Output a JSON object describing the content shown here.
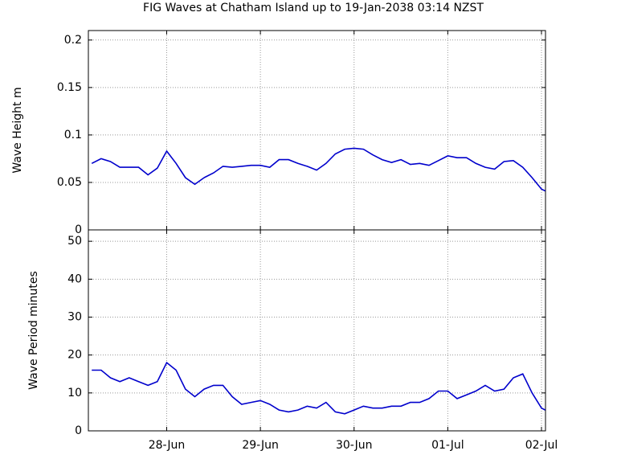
{
  "chart_data": [
    {
      "type": "line",
      "title": "FIG Waves at Chatham Island up to 19-Jan-2038 03:14 NZST",
      "ylabel": "Wave Height m",
      "x": [
        0.2,
        0.3,
        0.4,
        0.5,
        0.6,
        0.7,
        0.8,
        0.9,
        1.0,
        1.1,
        1.2,
        1.3,
        1.4,
        1.5,
        1.6,
        1.7,
        1.8,
        1.9,
        2.0,
        2.1,
        2.2,
        2.3,
        2.4,
        2.5,
        2.6,
        2.7,
        2.8,
        2.9,
        3.0,
        3.1,
        3.2,
        3.3,
        3.4,
        3.5,
        3.6,
        3.7,
        3.8,
        3.9,
        4.0,
        4.1,
        4.2,
        4.3,
        4.4,
        4.5,
        4.6,
        4.7,
        4.8,
        4.9,
        5.0,
        5.04
      ],
      "series": [
        {
          "color": "#0000cc",
          "values": [
            0.07,
            0.075,
            0.072,
            0.066,
            0.066,
            0.066,
            0.058,
            0.065,
            0.083,
            0.07,
            0.055,
            0.048,
            0.055,
            0.06,
            0.067,
            0.066,
            0.067,
            0.068,
            0.068,
            0.066,
            0.074,
            0.074,
            0.07,
            0.067,
            0.063,
            0.07,
            0.08,
            0.085,
            0.086,
            0.085,
            0.079,
            0.074,
            0.071,
            0.074,
            0.069,
            0.07,
            0.068,
            0.073,
            0.078,
            0.076,
            0.076,
            0.07,
            0.066,
            0.064,
            0.072,
            0.073,
            0.066,
            0.055,
            0.043,
            0.041
          ]
        }
      ],
      "xlim": [
        0.164,
        5.043
      ],
      "ylim": [
        0,
        0.21
      ],
      "yticks": [
        0,
        0.05,
        0.1,
        0.15,
        0.2
      ],
      "grid": true
    },
    {
      "type": "line",
      "ylabel": "Wave Period minutes",
      "x": [
        0.2,
        0.3,
        0.4,
        0.5,
        0.6,
        0.7,
        0.8,
        0.9,
        1.0,
        1.1,
        1.2,
        1.3,
        1.4,
        1.5,
        1.6,
        1.7,
        1.8,
        1.9,
        2.0,
        2.1,
        2.2,
        2.3,
        2.4,
        2.5,
        2.6,
        2.7,
        2.8,
        2.9,
        3.0,
        3.1,
        3.2,
        3.3,
        3.4,
        3.5,
        3.6,
        3.7,
        3.8,
        3.9,
        4.0,
        4.1,
        4.2,
        4.3,
        4.4,
        4.5,
        4.6,
        4.7,
        4.8,
        4.9,
        5.0,
        5.04
      ],
      "series": [
        {
          "color": "#0000cc",
          "values": [
            16,
            16,
            14,
            13,
            14,
            13,
            12,
            13,
            18,
            16,
            11,
            9,
            11,
            12,
            12,
            9,
            7,
            7.5,
            8,
            7,
            5.5,
            5,
            5.5,
            6.5,
            6,
            7.5,
            5,
            4.5,
            5.5,
            6.5,
            6,
            6,
            6.5,
            6.5,
            7.5,
            7.5,
            8.5,
            10.5,
            10.5,
            8.5,
            9.5,
            10.5,
            12,
            10.5,
            11,
            14,
            15,
            10,
            6,
            5.5
          ]
        }
      ],
      "xlim": [
        0.164,
        5.043
      ],
      "ylim": [
        0,
        53
      ],
      "yticks": [
        0,
        10,
        20,
        30,
        40,
        50
      ],
      "xticks": [
        {
          "value": 1,
          "label": "28-Jun"
        },
        {
          "value": 2,
          "label": "29-Jun"
        },
        {
          "value": 3,
          "label": "30-Jun"
        },
        {
          "value": 4,
          "label": "01-Jul"
        },
        {
          "value": 5,
          "label": "02-Jul"
        }
      ],
      "grid": true
    }
  ]
}
